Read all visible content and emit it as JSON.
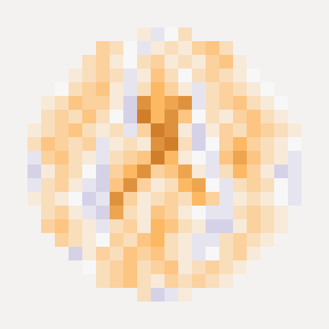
{
  "chart_data": {
    "type": "heatmap",
    "tick_labels": false,
    "zlim": [
      -10,
      10
    ],
    "cells": [
      [
        null,
        null,
        null,
        null,
        null,
        null,
        null,
        null,
        null,
        null,
        null,
        null,
        null,
        null,
        null,
        null,
        null,
        null,
        null,
        null,
        null,
        null,
        null,
        null
      ],
      [
        null,
        null,
        null,
        null,
        null,
        null,
        null,
        null,
        null,
        null,
        null,
        null,
        null,
        null,
        null,
        null,
        null,
        null,
        null,
        null,
        null,
        null,
        null,
        null
      ],
      [
        null,
        null,
        null,
        null,
        null,
        null,
        null,
        null,
        null,
        null,
        1,
        -1,
        0,
        2,
        null,
        null,
        null,
        null,
        null,
        null,
        null,
        null,
        null,
        null
      ],
      [
        null,
        null,
        null,
        null,
        null,
        null,
        null,
        3,
        2,
        0,
        -1,
        1,
        2,
        1,
        3,
        4,
        2,
        null,
        null,
        null,
        null,
        null,
        null,
        null
      ],
      [
        null,
        null,
        null,
        null,
        null,
        null,
        2,
        3,
        1,
        0,
        2,
        3,
        1,
        2,
        1,
        3,
        4,
        1,
        null,
        null,
        null,
        null,
        null,
        null
      ],
      [
        null,
        null,
        null,
        null,
        null,
        1,
        2,
        3,
        2,
        -1,
        1,
        4,
        2,
        0,
        2,
        3,
        2,
        1,
        0,
        null,
        null,
        null,
        null,
        null
      ],
      [
        null,
        null,
        null,
        null,
        0,
        2,
        3,
        4,
        1,
        -1,
        2,
        5,
        3,
        1,
        -1,
        2,
        3,
        2,
        1,
        0,
        null,
        null,
        null,
        null
      ],
      [
        null,
        null,
        null,
        1,
        2,
        4,
        3,
        3,
        1,
        -2,
        7,
        5,
        6,
        7,
        -1,
        2,
        3,
        4,
        2,
        1,
        0,
        null,
        null,
        null
      ],
      [
        null,
        null,
        null,
        2,
        3,
        2,
        4,
        2,
        0,
        -2,
        8,
        5,
        7,
        4,
        0,
        2,
        1,
        3,
        4,
        2,
        1,
        null,
        null,
        null
      ],
      [
        null,
        null,
        1,
        2,
        3,
        4,
        2,
        1,
        2,
        -1,
        3,
        8,
        7,
        1,
        -2,
        1,
        3,
        2,
        4,
        3,
        2,
        1,
        null,
        null
      ],
      [
        null,
        null,
        2,
        4,
        3,
        2,
        3,
        -1,
        1,
        2,
        1,
        7,
        8,
        2,
        -2,
        0,
        3,
        5,
        3,
        2,
        1,
        0,
        null,
        null
      ],
      [
        null,
        null,
        -1,
        3,
        4,
        2,
        1,
        -1,
        2,
        3,
        4,
        8,
        5,
        1,
        0,
        -1,
        4,
        6,
        4,
        2,
        1,
        -1,
        null,
        null
      ],
      [
        null,
        null,
        -2,
        1,
        3,
        2,
        0,
        -2,
        3,
        5,
        7,
        3,
        4,
        6,
        1,
        -1,
        2,
        5,
        3,
        1,
        -2,
        -1,
        null,
        null
      ],
      [
        null,
        null,
        -1,
        2,
        3,
        1,
        -1,
        -2,
        4,
        7,
        3,
        1,
        2,
        5,
        6,
        0,
        -1,
        2,
        3,
        2,
        0,
        -1,
        null,
        null
      ],
      [
        null,
        null,
        1,
        2,
        1,
        0,
        -2,
        -1,
        7,
        3,
        1,
        2,
        3,
        2,
        5,
        3,
        -1,
        1,
        2,
        1,
        0,
        -1,
        null,
        null
      ],
      [
        null,
        null,
        null,
        2,
        3,
        1,
        -1,
        -2,
        6,
        2,
        1,
        4,
        3,
        1,
        0,
        -1,
        -1,
        2,
        3,
        2,
        1,
        null,
        null,
        null
      ],
      [
        null,
        null,
        null,
        3,
        4,
        2,
        1,
        -1,
        2,
        3,
        1,
        5,
        4,
        2,
        1,
        -2,
        -2,
        1,
        3,
        2,
        1,
        null,
        null,
        null
      ],
      [
        null,
        null,
        null,
        null,
        3,
        2,
        1,
        0,
        3,
        2,
        4,
        5,
        2,
        1,
        -1,
        -1,
        2,
        3,
        2,
        1,
        null,
        null,
        null,
        null
      ],
      [
        null,
        null,
        null,
        null,
        null,
        -2,
        1,
        3,
        2,
        4,
        3,
        4,
        2,
        1,
        -1,
        0,
        2,
        3,
        1,
        null,
        null,
        null,
        null,
        null
      ],
      [
        null,
        null,
        null,
        null,
        null,
        null,
        0,
        2,
        3,
        4,
        2,
        3,
        4,
        1,
        2,
        3,
        2,
        1,
        null,
        null,
        null,
        null,
        null,
        null
      ],
      [
        null,
        null,
        null,
        null,
        null,
        null,
        null,
        2,
        3,
        4,
        2,
        1,
        3,
        2,
        3,
        2,
        1,
        null,
        null,
        null,
        null,
        null,
        null,
        null
      ],
      [
        null,
        null,
        null,
        null,
        null,
        null,
        null,
        null,
        null,
        null,
        2,
        -2,
        -1,
        1,
        null,
        null,
        null,
        null,
        null,
        null,
        null,
        null,
        null,
        null
      ],
      [
        null,
        null,
        null,
        null,
        null,
        null,
        null,
        null,
        null,
        null,
        null,
        null,
        null,
        null,
        null,
        null,
        null,
        null,
        null,
        null,
        null,
        null,
        null,
        null
      ],
      [
        null,
        null,
        null,
        null,
        null,
        null,
        null,
        null,
        null,
        null,
        null,
        null,
        null,
        null,
        null,
        null,
        null,
        null,
        null,
        null,
        null,
        null,
        null,
        null
      ]
    ]
  }
}
